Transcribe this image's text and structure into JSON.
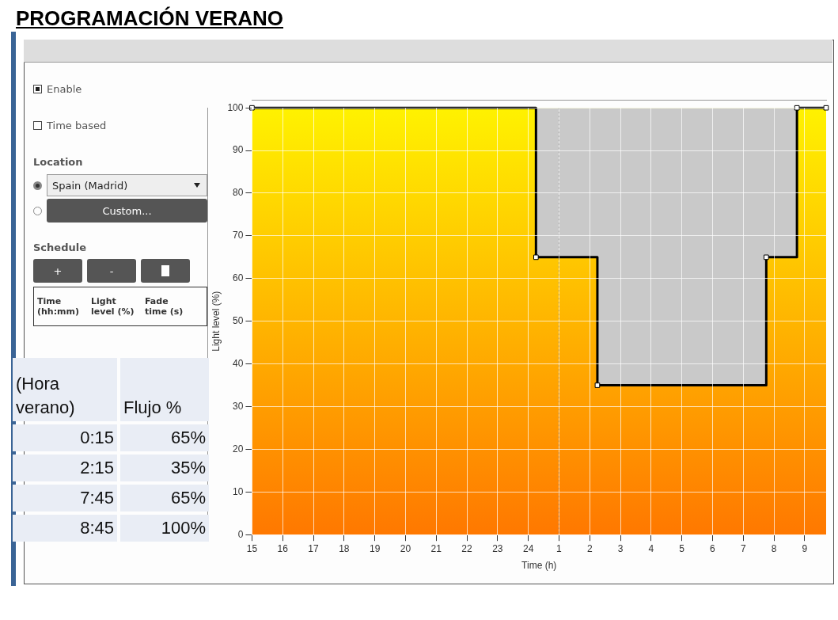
{
  "chart_data": {
    "type": "step",
    "title": "PROGRAMACIÓN VERANO",
    "xlabel": "Time (h)",
    "ylabel": "Light level (%)",
    "x": [
      "--01-01T15:00",
      "--01-02T00:15",
      "--01-02T02:15",
      "--01-02T07:45",
      "--01-02T08:45",
      "--01-02T09:42"
    ],
    "series": [
      {
        "color": "#000000",
        "values": [
          100,
          65,
          35,
          65,
          100,
          100
        ]
      }
    ],
    "xlim": [
      "--01-01T15:00",
      "--01-02T09:42"
    ],
    "xticks": [
      {
        "value": "--01-01T15:00",
        "label": "15"
      },
      {
        "value": "--01-01T16:00",
        "label": "16"
      },
      {
        "value": "--01-01T17:00",
        "label": "17"
      },
      {
        "value": "--01-01T18:00",
        "label": "18"
      },
      {
        "value": "--01-01T19:00",
        "label": "19"
      },
      {
        "value": "--01-01T20:00",
        "label": "20"
      },
      {
        "value": "--01-01T21:00",
        "label": "21"
      },
      {
        "value": "--01-01T22:00",
        "label": "22"
      },
      {
        "value": "--01-01T23:00",
        "label": "23"
      },
      {
        "value": "--01-02T00:00",
        "label": "24"
      },
      {
        "value": "--01-02T01:00",
        "label": "1"
      },
      {
        "value": "--01-02T02:00",
        "label": "2"
      },
      {
        "value": "--01-02T03:00",
        "label": "3"
      },
      {
        "value": "--01-02T04:00",
        "label": "4"
      },
      {
        "value": "--01-02T05:00",
        "label": "5"
      },
      {
        "value": "--01-02T06:00",
        "label": "6"
      },
      {
        "value": "--01-02T07:00",
        "label": "7"
      },
      {
        "value": "--01-02T08:00",
        "label": "8"
      },
      {
        "value": "--01-02T09:00",
        "label": "9"
      }
    ],
    "ylim": [
      0,
      100
    ],
    "yticks": [
      0,
      10,
      20,
      30,
      40,
      50,
      60,
      70,
      80,
      90,
      100
    ],
    "grid": true,
    "legend": false,
    "marker": "square",
    "line_style": "solid",
    "ref_lines": [
      {
        "axis": "x",
        "value": "--01-02T01:00",
        "color": "#333333",
        "line_style": "dotted"
      }
    ],
    "annotations": [
      "Enable",
      "Time based",
      "Location",
      "Spain (Madrid)",
      "Custom...",
      "Schedule",
      "+",
      "-",
      "Time (hh:mm)",
      "Light level (%)",
      "Fade time (s)",
      "(Hora verano)",
      "Flujo %",
      "0:15",
      "65%",
      "2:15",
      "35%",
      "7:45",
      "65%",
      "8:45",
      "100%"
    ]
  }
}
